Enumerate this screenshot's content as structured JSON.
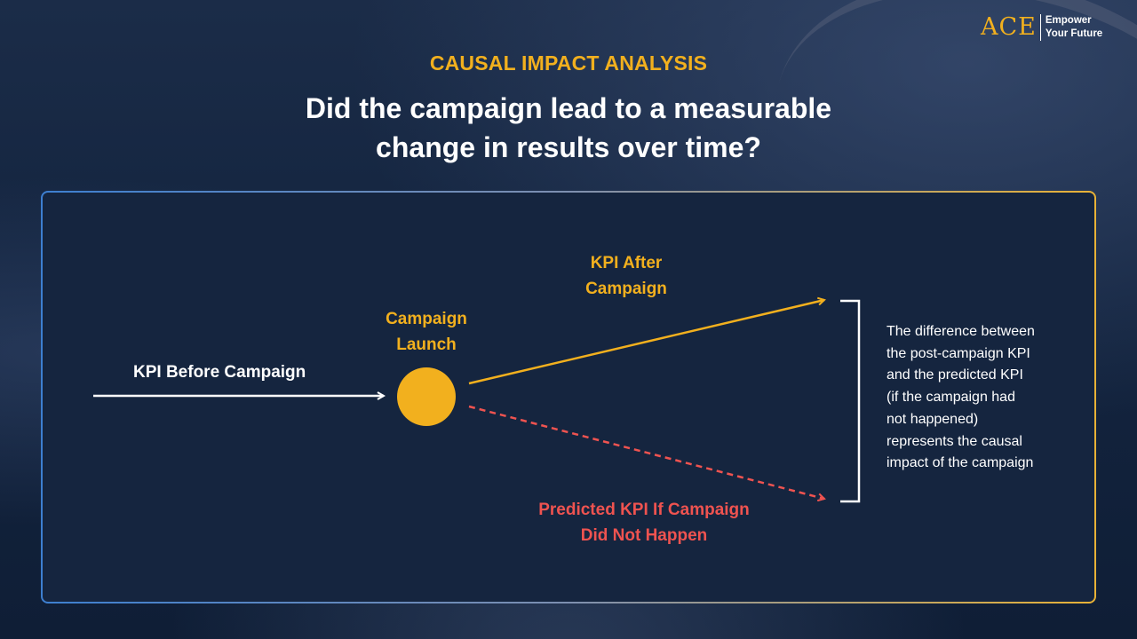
{
  "logo": {
    "mark": "ACE",
    "tagline": [
      "Empower",
      "Your Future"
    ]
  },
  "header": {
    "eyebrow": "CAUSAL IMPACT ANALYSIS",
    "headline": "Did the campaign lead to a measurable change in results over time?"
  },
  "diagram": {
    "kpi_before": "KPI Before Campaign",
    "launch": [
      "Campaign",
      "Launch"
    ],
    "kpi_after": [
      "KPI After",
      "Campaign"
    ],
    "predicted": [
      "Predicted KPI If Campaign",
      "Did Not Happen"
    ],
    "description_lines": [
      "The difference between",
      "the post-campaign KPI",
      "and the predicted KPI",
      "(if the campaign had",
      "not happened)",
      "represents the causal",
      "impact of the campaign"
    ]
  },
  "colors": {
    "accent": "#f2b01e",
    "predicted": "#ef5350",
    "background": "#142540",
    "text": "#ffffff"
  }
}
